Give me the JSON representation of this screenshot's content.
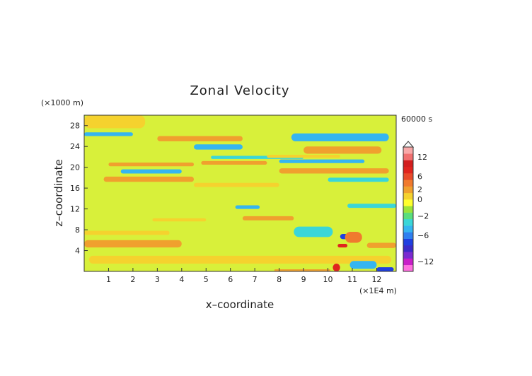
{
  "chart_data": {
    "type": "heatmap",
    "title": "Zonal Velocity",
    "xlabel": "x–coordinate",
    "ylabel": "z–coordinate",
    "x_unit": "(×1E4 m)",
    "y_unit": "(×1000 m)",
    "time_label": "60000 s",
    "xlim": [
      0,
      12.8
    ],
    "ylim": [
      0,
      30
    ],
    "x_ticks": [
      "1",
      "2",
      "3",
      "4",
      "5",
      "6",
      "7",
      "8",
      "9",
      "10",
      "11",
      "12"
    ],
    "y_ticks": [
      "4",
      "8",
      "12",
      "16",
      "20",
      "24",
      "28"
    ],
    "colorbar": {
      "ticks": [
        "12",
        "6",
        "2",
        "0",
        "−2",
        "−6",
        "−12"
      ],
      "colors": [
        "#ff6fe0",
        "#c81ec8",
        "#7a2bd0",
        "#3a2bc8",
        "#1f3fe0",
        "#2f7ff0",
        "#35b5f0",
        "#3ad6d8",
        "#5ade7c",
        "#9be43a",
        "#ffff2e",
        "#f5d22e",
        "#f0a02e",
        "#f07a2e",
        "#e84a2a",
        "#e0241e",
        "#d21e1e",
        "#f07070",
        "#f8a8a8"
      ]
    },
    "bands": [
      {
        "x": [
          0,
          12.8
        ],
        "z": [
          0,
          30
        ],
        "u": 0.3
      },
      {
        "x": [
          0.2,
          12.6
        ],
        "z": [
          1.5,
          3.0
        ],
        "u": 1.0
      },
      {
        "x": [
          0,
          4.0
        ],
        "z": [
          4.6,
          6.0
        ],
        "u": 2.5
      },
      {
        "x": [
          0,
          3.5
        ],
        "z": [
          7.0,
          7.8
        ],
        "u": 1.0
      },
      {
        "x": [
          6.5,
          8.6
        ],
        "z": [
          9.8,
          10.6
        ],
        "u": 2.5
      },
      {
        "x": [
          2.8,
          5.0
        ],
        "z": [
          9.6,
          10.2
        ],
        "u": 1.0
      },
      {
        "x": [
          8.6,
          10.2
        ],
        "z": [
          6.6,
          8.6
        ],
        "u": -1.0
      },
      {
        "x": [
          6.2,
          7.2
        ],
        "z": [
          12.0,
          12.7
        ],
        "u": -2.0
      },
      {
        "x": [
          10.8,
          12.8
        ],
        "z": [
          12.2,
          13.0
        ],
        "u": -1.0
      },
      {
        "x": [
          0.8,
          4.5
        ],
        "z": [
          17.2,
          18.2
        ],
        "u": 2.5
      },
      {
        "x": [
          4.5,
          8.0
        ],
        "z": [
          16.2,
          17.0
        ],
        "u": 1.0
      },
      {
        "x": [
          1.5,
          4.0
        ],
        "z": [
          18.8,
          19.6
        ],
        "u": -2.0
      },
      {
        "x": [
          8.0,
          12.5
        ],
        "z": [
          18.8,
          19.8
        ],
        "u": 2.5
      },
      {
        "x": [
          10.0,
          12.5
        ],
        "z": [
          17.2,
          18.0
        ],
        "u": -1.0
      },
      {
        "x": [
          1.0,
          4.5
        ],
        "z": [
          20.2,
          20.9
        ],
        "u": 2.5
      },
      {
        "x": [
          4.8,
          7.5
        ],
        "z": [
          20.5,
          21.2
        ],
        "u": 2.5
      },
      {
        "x": [
          8.0,
          11.5
        ],
        "z": [
          20.8,
          21.5
        ],
        "u": -2.0
      },
      {
        "x": [
          5.2,
          9.0
        ],
        "z": [
          21.6,
          22.2
        ],
        "u": -1.0
      },
      {
        "x": [
          7.5,
          10.5
        ],
        "z": [
          21.8,
          22.4
        ],
        "u": 1.0
      },
      {
        "x": [
          9.0,
          12.2
        ],
        "z": [
          22.6,
          24.0
        ],
        "u": 2.5
      },
      {
        "x": [
          4.5,
          6.5
        ],
        "z": [
          23.4,
          24.4
        ],
        "u": -2.0
      },
      {
        "x": [
          3.0,
          6.5
        ],
        "z": [
          25.0,
          26.0
        ],
        "u": 2.5
      },
      {
        "x": [
          0,
          2.0
        ],
        "z": [
          26.0,
          26.7
        ],
        "u": -2.0
      },
      {
        "x": [
          8.5,
          12.5
        ],
        "z": [
          25.0,
          26.5
        ],
        "u": -2.0
      },
      {
        "x": [
          0,
          2.5
        ],
        "z": [
          27.5,
          30
        ],
        "u": 1.0
      },
      {
        "x": [
          10.2,
          10.5
        ],
        "z": [
          0,
          1.5
        ],
        "u": 8.0
      },
      {
        "x": [
          10.4,
          10.8
        ],
        "z": [
          4.6,
          5.3
        ],
        "u": 8.0
      },
      {
        "x": [
          10.5,
          10.8
        ],
        "z": [
          6.2,
          7.2
        ],
        "u": -7.0
      },
      {
        "x": [
          10.7,
          11.4
        ],
        "z": [
          5.5,
          7.6
        ],
        "u": 4.0
      },
      {
        "x": [
          11.6,
          12.8
        ],
        "z": [
          4.5,
          5.5
        ],
        "u": 2.5
      },
      {
        "x": [
          10.9,
          12.0
        ],
        "z": [
          0.5,
          2.0
        ],
        "u": -3.0
      },
      {
        "x": [
          12.0,
          12.7
        ],
        "z": [
          0,
          0.8
        ],
        "u": -6.0
      },
      {
        "x": [
          7.8,
          10.1
        ],
        "z": [
          0,
          0.4
        ],
        "u": 3.0
      }
    ]
  }
}
